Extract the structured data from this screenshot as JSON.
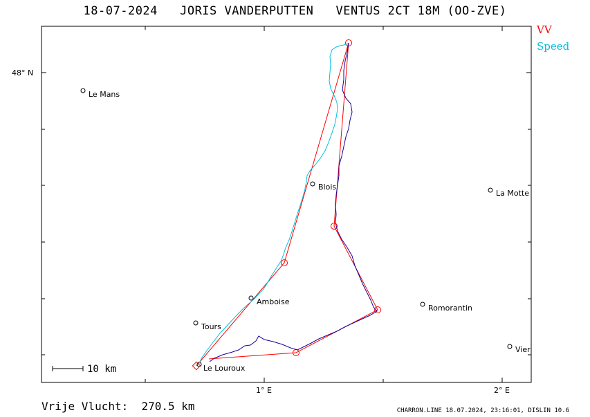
{
  "header": {
    "title": "18-07-2024   JORIS VANDERPUTTEN   VENTUS 2CT 18M (OO-ZVE)"
  },
  "legend": {
    "items": [
      {
        "label": "VV",
        "color": "#ff0000"
      },
      {
        "label": "Speed",
        "color": "#00c0e0"
      }
    ]
  },
  "map": {
    "axes": {
      "lat_label": "48° N",
      "lon_labels": [
        "1° E",
        "2° E"
      ]
    },
    "scale": {
      "label": "10 km"
    },
    "places": [
      {
        "name": "Le Mans"
      },
      {
        "name": "Blois"
      },
      {
        "name": "La Motte"
      },
      {
        "name": "Amboise"
      },
      {
        "name": "Romorantin"
      },
      {
        "name": "Tours"
      },
      {
        "name": "Vier"
      },
      {
        "name": "Le Louroux"
      }
    ],
    "colors": {
      "task": "#ff0000",
      "track_speed": "#00c0e0",
      "track_vv": "#1a0099"
    }
  },
  "footer": {
    "distance": "Vrije Vlucht:  270.5 km",
    "credit": "CHARRON.LINE 18.07.2024, 23:16:01, DISLIN 10.6"
  }
}
